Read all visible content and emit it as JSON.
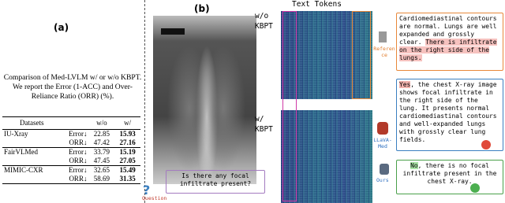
{
  "panel_a": {
    "label": "(a)",
    "caption": "Comparison of Med-LVLM w/ or w/o KBPT. We report the Error (1-ACC) and Over-Reliance Ratio (ORR) (%).",
    "table": {
      "header": [
        "Datasets",
        "w/o",
        "w/"
      ],
      "rows": [
        [
          "IU-Xray",
          "Error↓",
          "22.85",
          "15.93"
        ],
        [
          "",
          "ORR↓",
          "47.42",
          "27.16"
        ],
        [
          "FairVLMed",
          "Error↓",
          "33.79",
          "15.19"
        ],
        [
          "",
          "ORR↓",
          "47.45",
          "27.05"
        ],
        [
          "MIMIC-CXR",
          "Error↓",
          "32.65",
          "15.49"
        ],
        [
          "",
          "ORR↓",
          "58.69",
          "31.35"
        ]
      ]
    }
  },
  "panel_b": {
    "label": "(b)",
    "heatmap_title": "Text Tokens",
    "without_label": "w/o KBPT",
    "with_label": "w/ KBPT",
    "question": {
      "icon_label": "Question",
      "text": "Is there any focal infiltrate present?"
    },
    "reference": {
      "icon_label": "Reference",
      "text": "Cardiomediastinal contours are normal. Lungs are well expanded and grossly clear.",
      "highlight": "There is infiltrate on the right side of the lungs."
    },
    "llava": {
      "icon_label": "LLaVA-Med",
      "answer": "Yes",
      "text": ", the chest X-ray image shows focal infiltrate in the right side of the lung. It presents normal cardiomediastinal contours and well-expanded lungs with grossly clear lung fields."
    },
    "ours": {
      "icon_label": "Ours",
      "answer": "No",
      "text": ", there is no focal infiltrate present in the chest X-ray."
    }
  }
}
